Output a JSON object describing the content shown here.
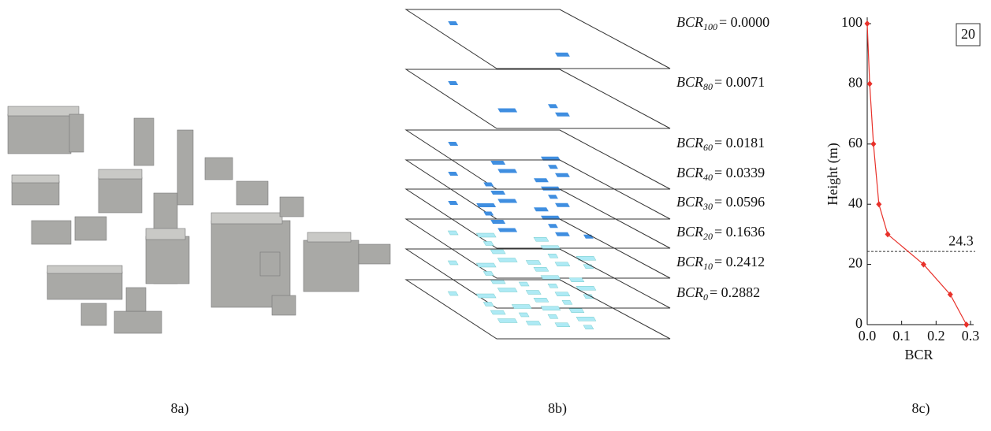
{
  "panels": {
    "captions": [
      "8a)",
      "8b)",
      "8c)"
    ],
    "layers": [
      {
        "name": "BCR",
        "sub": "100",
        "rest": "= 0.0000"
      },
      {
        "name": "BCR",
        "sub": "80",
        "rest": "= 0.0071"
      },
      {
        "name": "BCR",
        "sub": "60",
        "rest": "= 0.0181"
      },
      {
        "name": "BCR",
        "sub": "40",
        "rest": "= 0.0339"
      },
      {
        "name": "BCR",
        "sub": "30",
        "rest": "= 0.0596"
      },
      {
        "name": "BCR",
        "sub": "20",
        "rest": "= 0.1636"
      },
      {
        "name": "BCR",
        "sub": "10",
        "rest": "= 0.2412"
      },
      {
        "name": "BCR",
        "sub": "0",
        "rest": "= 0.2882"
      }
    ]
  },
  "chart_data": {
    "type": "line",
    "box_label": "20",
    "x_label": "BCR",
    "y_label": "Height (m)",
    "x": [
      0.2882,
      0.2412,
      0.1636,
      0.0596,
      0.0339,
      0.0181,
      0.0071,
      0.0
    ],
    "series": [
      {
        "color": "#e8312a",
        "values": [
          0,
          10,
          20,
          30,
          40,
          60,
          80,
          100
        ]
      }
    ],
    "xlim": [
      0,
      0.3
    ],
    "xticks": [
      {
        "value": 0,
        "label": "0.0"
      },
      0.1,
      0.2,
      0.3
    ],
    "ylim": [
      0,
      100
    ],
    "yticks": [
      0,
      20,
      40,
      60,
      80,
      100
    ],
    "hline": 24.3
  }
}
